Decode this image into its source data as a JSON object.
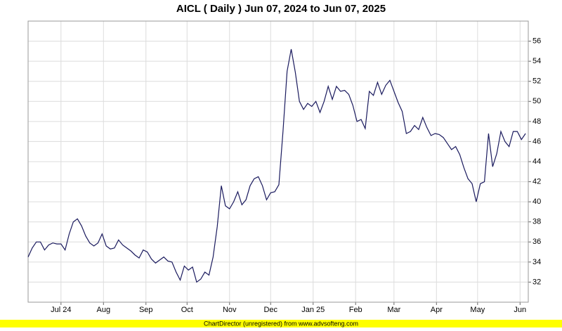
{
  "chart_data": {
    "type": "line",
    "title": "AICL ( Daily ) Jun 07, 2024 to Jun 07, 2025",
    "footer": "ChartDirector (unregistered) from www.advsofteng.com",
    "color": "#1a1a5e",
    "grid": true,
    "xlim": [
      "2024-06-07",
      "2025-06-07"
    ],
    "xticks": [
      {
        "value": "2024-07-01",
        "label": "Jul 24"
      },
      {
        "value": "2024-08-01",
        "label": "Aug"
      },
      {
        "value": "2024-09-01",
        "label": "Sep"
      },
      {
        "value": "2024-10-01",
        "label": "Oct"
      },
      {
        "value": "2024-11-01",
        "label": "Nov"
      },
      {
        "value": "2024-12-01",
        "label": "Dec"
      },
      {
        "value": "2025-01-01",
        "label": "Jan 25"
      },
      {
        "value": "2025-02-01",
        "label": "Feb"
      },
      {
        "value": "2025-03-01",
        "label": "Mar"
      },
      {
        "value": "2025-04-01",
        "label": "Apr"
      },
      {
        "value": "2025-05-01",
        "label": "May"
      },
      {
        "value": "2025-06-01",
        "label": "Jun"
      }
    ],
    "ylim": [
      30,
      58
    ],
    "yticks": [
      32,
      34,
      36,
      38,
      40,
      42,
      44,
      46,
      48,
      50,
      52,
      54,
      56
    ],
    "x": [
      "2024-06-07",
      "2024-06-10",
      "2024-06-13",
      "2024-06-16",
      "2024-06-19",
      "2024-06-22",
      "2024-06-25",
      "2024-06-28",
      "2024-07-01",
      "2024-07-04",
      "2024-07-07",
      "2024-07-10",
      "2024-07-13",
      "2024-07-16",
      "2024-07-19",
      "2024-07-22",
      "2024-07-25",
      "2024-07-28",
      "2024-07-31",
      "2024-08-03",
      "2024-08-06",
      "2024-08-09",
      "2024-08-12",
      "2024-08-15",
      "2024-08-18",
      "2024-08-21",
      "2024-08-24",
      "2024-08-27",
      "2024-08-30",
      "2024-09-02",
      "2024-09-05",
      "2024-09-08",
      "2024-09-11",
      "2024-09-14",
      "2024-09-17",
      "2024-09-20",
      "2024-09-23",
      "2024-09-26",
      "2024-09-29",
      "2024-10-02",
      "2024-10-05",
      "2024-10-08",
      "2024-10-11",
      "2024-10-14",
      "2024-10-17",
      "2024-10-20",
      "2024-10-23",
      "2024-10-26",
      "2024-10-29",
      "2024-11-01",
      "2024-11-04",
      "2024-11-07",
      "2024-11-10",
      "2024-11-13",
      "2024-11-16",
      "2024-11-19",
      "2024-11-22",
      "2024-11-25",
      "2024-11-28",
      "2024-12-01",
      "2024-12-04",
      "2024-12-07",
      "2024-12-10",
      "2024-12-13",
      "2024-12-16",
      "2024-12-19",
      "2024-12-22",
      "2024-12-25",
      "2024-12-28",
      "2024-12-31",
      "2025-01-03",
      "2025-01-06",
      "2025-01-09",
      "2025-01-12",
      "2025-01-15",
      "2025-01-18",
      "2025-01-21",
      "2025-01-24",
      "2025-01-27",
      "2025-01-30",
      "2025-02-02",
      "2025-02-05",
      "2025-02-08",
      "2025-02-11",
      "2025-02-14",
      "2025-02-17",
      "2025-02-20",
      "2025-02-23",
      "2025-02-26",
      "2025-03-01",
      "2025-03-04",
      "2025-03-07",
      "2025-03-10",
      "2025-03-13",
      "2025-03-16",
      "2025-03-19",
      "2025-03-22",
      "2025-03-25",
      "2025-03-28",
      "2025-03-31",
      "2025-04-03",
      "2025-04-06",
      "2025-04-09",
      "2025-04-12",
      "2025-04-15",
      "2025-04-18",
      "2025-04-21",
      "2025-04-24",
      "2025-04-27",
      "2025-04-30",
      "2025-05-03",
      "2025-05-06",
      "2025-05-09",
      "2025-05-12",
      "2025-05-15",
      "2025-05-18",
      "2025-05-21",
      "2025-05-24",
      "2025-05-27",
      "2025-05-30",
      "2025-06-02",
      "2025-06-05"
    ],
    "values": [
      34.5,
      35.4,
      36.0,
      36.0,
      35.2,
      35.7,
      35.9,
      35.8,
      35.8,
      35.2,
      36.8,
      38.0,
      38.3,
      37.6,
      36.6,
      35.9,
      35.6,
      35.9,
      36.8,
      35.6,
      35.3,
      35.4,
      36.2,
      35.7,
      35.4,
      35.1,
      34.7,
      34.4,
      35.2,
      35.0,
      34.3,
      33.9,
      34.2,
      34.5,
      34.1,
      34.0,
      33.0,
      32.2,
      33.6,
      33.2,
      33.5,
      32.0,
      32.3,
      33.0,
      32.7,
      34.5,
      37.5,
      41.6,
      39.6,
      39.3,
      40.0,
      41.0,
      39.7,
      40.2,
      41.6,
      42.3,
      42.5,
      41.6,
      40.2,
      40.9,
      41.0,
      41.7,
      47.0,
      53.0,
      55.2,
      52.9,
      50.0,
      49.2,
      49.8,
      49.5,
      50.0,
      48.9,
      50.0,
      51.5,
      50.2,
      51.5,
      51.0,
      51.1,
      50.7,
      49.6,
      48.0,
      48.2,
      47.3,
      51.0,
      50.6,
      51.9,
      50.7,
      51.6,
      52.1,
      51.0,
      49.9,
      49.0,
      46.8,
      47.0,
      47.6,
      47.2,
      48.4,
      47.4,
      46.6,
      46.8,
      46.7,
      46.4,
      45.8,
      45.2,
      45.5,
      44.7,
      43.4,
      42.3,
      41.8,
      40.0,
      41.8,
      42.0,
      46.8,
      43.5,
      44.8,
      47.0,
      46.0,
      45.5,
      47.0,
      47.0,
      46.2,
      46.8
    ]
  }
}
